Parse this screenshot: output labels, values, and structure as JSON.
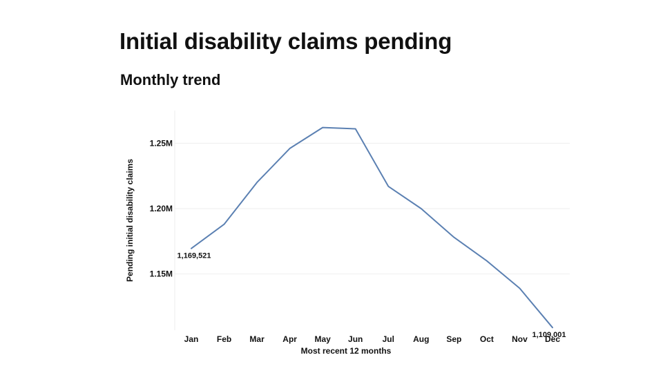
{
  "title": "Initial disability claims pending",
  "subtitle": "Monthly trend",
  "chart_data": {
    "type": "line",
    "title": "",
    "xlabel": "Most recent 12 months",
    "ylabel": "Pending initial disability claims",
    "categories": [
      "Jan",
      "Feb",
      "Mar",
      "Apr",
      "May",
      "Jun",
      "Jul",
      "Aug",
      "Sep",
      "Oct",
      "Nov",
      "Dec"
    ],
    "series": [
      {
        "values": [
          1169521,
          1188000,
          1220000,
          1246000,
          1262000,
          1261000,
          1217000,
          1200000,
          1178000,
          1160000,
          1139000,
          1109001
        ],
        "color": "#5b80b2"
      }
    ],
    "yticks": [
      {
        "value": 1150000,
        "label": "1.15M"
      },
      {
        "value": 1200000,
        "label": "1.20M"
      },
      {
        "value": 1250000,
        "label": "1.25M"
      }
    ],
    "ylim": [
      1107000,
      1275000
    ],
    "grid": true,
    "legend": "none",
    "annotations": [
      {
        "index": 0,
        "label": "1,169,521"
      },
      {
        "index": 11,
        "label": "1,109,001"
      }
    ]
  }
}
